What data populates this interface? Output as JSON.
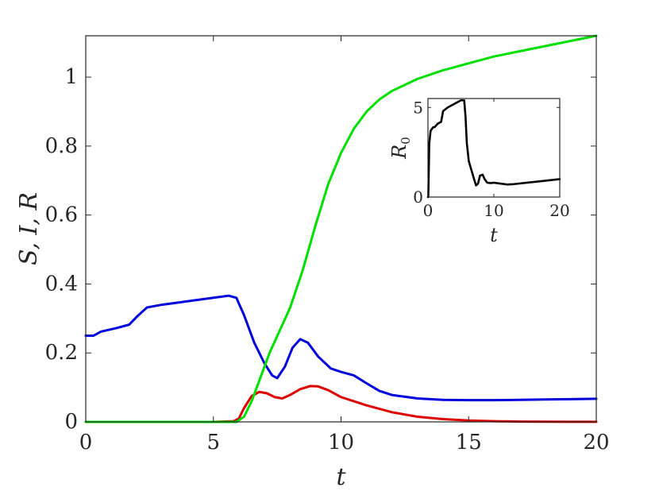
{
  "chart_data": [
    {
      "type": "line",
      "xlabel": "t",
      "ylabel": "S, I, R",
      "xlim": [
        0,
        20
      ],
      "ylim": [
        0,
        1.12
      ],
      "xticks": [
        "0",
        "5",
        "10",
        "15",
        "20"
      ],
      "yticks": [
        "0",
        "0.2",
        "0.4",
        "0.6",
        "0.8",
        "1"
      ],
      "grid": false,
      "series": [
        {
          "color": "#0000dd",
          "x": [
            0,
            0.3,
            0.6,
            1.2,
            1.7,
            2.0,
            2.4,
            3.0,
            4.0,
            5.0,
            5.6,
            5.9,
            6.2,
            6.6,
            7.0,
            7.3,
            7.5,
            7.8,
            8.1,
            8.4,
            8.7,
            9.1,
            9.6,
            10.0,
            10.5,
            11.0,
            11.5,
            12.0,
            13.0,
            14.0,
            15.0,
            16.0,
            17.0,
            18.0,
            19.0,
            20.0
          ],
          "y": [
            0.25,
            0.25,
            0.262,
            0.272,
            0.282,
            0.305,
            0.332,
            0.34,
            0.35,
            0.36,
            0.366,
            0.36,
            0.31,
            0.23,
            0.17,
            0.135,
            0.127,
            0.16,
            0.215,
            0.24,
            0.23,
            0.19,
            0.155,
            0.145,
            0.135,
            0.112,
            0.09,
            0.078,
            0.068,
            0.064,
            0.063,
            0.063,
            0.064,
            0.065,
            0.066,
            0.067
          ]
        },
        {
          "color": "#dd0000",
          "x": [
            0,
            1,
            2,
            3,
            4,
            5,
            5.8,
            6.0,
            6.2,
            6.5,
            6.8,
            7.1,
            7.4,
            7.7,
            8.0,
            8.4,
            8.8,
            9.1,
            9.5,
            10.0,
            10.5,
            11.0,
            12.0,
            13.0,
            14.0,
            15.0,
            16.0,
            17.0,
            18.0,
            19.0,
            20.0
          ],
          "y": [
            0,
            0,
            0,
            0,
            0,
            0,
            0.002,
            0.01,
            0.04,
            0.075,
            0.087,
            0.083,
            0.072,
            0.068,
            0.078,
            0.095,
            0.104,
            0.103,
            0.092,
            0.072,
            0.06,
            0.048,
            0.028,
            0.015,
            0.008,
            0.004,
            0.002,
            0.001,
            0.0005,
            0.0003,
            0.0002
          ]
        },
        {
          "color": "#00e000",
          "x": [
            0,
            1,
            2,
            3,
            4,
            5,
            5.9,
            6.2,
            6.5,
            6.8,
            7.2,
            7.6,
            8.0,
            8.5,
            9.0,
            9.5,
            10.0,
            10.5,
            11.0,
            11.5,
            12.0,
            13.0,
            14.0,
            15.0,
            16.0,
            17.0,
            18.0,
            19.0,
            20.0
          ],
          "y": [
            0,
            0,
            0,
            0,
            0,
            0,
            0,
            0.015,
            0.06,
            0.12,
            0.2,
            0.265,
            0.33,
            0.44,
            0.57,
            0.69,
            0.78,
            0.85,
            0.9,
            0.935,
            0.96,
            0.995,
            1.02,
            1.04,
            1.06,
            1.075,
            1.09,
            1.105,
            1.12
          ]
        }
      ]
    },
    {
      "type": "line",
      "xlabel": "t",
      "ylabel": "R",
      "ylabel_subscript": "0",
      "xlim": [
        0,
        20
      ],
      "ylim": [
        0,
        5.5
      ],
      "xticks": [
        "0",
        "10",
        "20"
      ],
      "yticks": [
        "0",
        "5"
      ],
      "grid": false,
      "series": [
        {
          "color": "#000000",
          "x": [
            0,
            0.05,
            0.2,
            0.4,
            0.8,
            1.0,
            1.5,
            2.0,
            2.3,
            3.0,
            4.0,
            5.0,
            5.5,
            5.7,
            5.9,
            6.2,
            6.6,
            7.0,
            7.3,
            7.6,
            7.9,
            8.3,
            8.6,
            9.0,
            9.5,
            10.0,
            11.0,
            12.0,
            13.0,
            15.0,
            17.0,
            20.0
          ],
          "y": [
            0,
            0,
            3.0,
            3.7,
            3.9,
            3.9,
            4.1,
            4.2,
            4.8,
            5.0,
            5.2,
            5.4,
            5.4,
            4.5,
            3.0,
            2.0,
            1.5,
            1.0,
            0.65,
            0.75,
            1.2,
            1.25,
            1.0,
            0.8,
            0.78,
            0.8,
            0.75,
            0.7,
            0.72,
            0.8,
            0.88,
            1.0
          ]
        }
      ]
    }
  ]
}
